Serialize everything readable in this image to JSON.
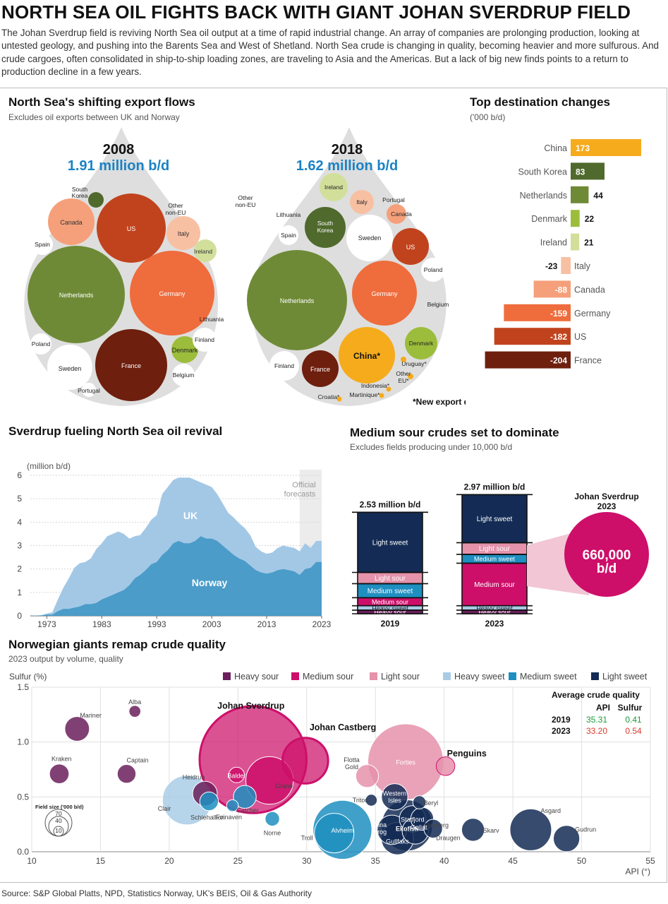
{
  "header": {
    "title": "NORTH SEA OIL FIGHTS BACK WITH GIANT JOHAN SVERDRUP FIELD",
    "intro": "The Johan Sverdrup field is reviving North Sea oil output at a time of rapid industrial change. An array of companies are prolonging production, looking at untested geology, and pushing into the Barents Sea and West of Shetland. North Sea crude is changing in quality, becoming heavier and more sulfurous. And crude cargoes, often consolidated in ship-to-ship loading zones, are traveling to Asia and the Americas. But a lack of big new finds points to a return to production decline in a few years."
  },
  "source": "Source: S&P Global Platts, NPD, Statistics Norway, UK's BEIS, Oil & Gas Authority",
  "colors": {
    "dark_brown": "#6e1f0e",
    "rust": "#c1431d",
    "orange": "#ef6c3c",
    "salmon": "#f5a07a",
    "peach": "#f8c0a3",
    "olive": "#6e8a36",
    "dark_olive": "#4f6a2c",
    "lime": "#9cbd3b",
    "pale_lime": "#d2df9b",
    "gold": "#f6ab1d",
    "navy": "#142c55",
    "mid_blue": "#1f8fc0",
    "light_blue": "#a9cce6",
    "pink": "#e592ab",
    "magenta": "#cd0f6a",
    "purple": "#6b1f5c",
    "area_uk": "#a3c8e6",
    "area_nor": "#4b9cc9"
  },
  "export_flows": {
    "title": "North Sea's shifting export flows",
    "subtitle": "Excludes oil exports between UK and Norway",
    "note": "*New export destination",
    "chart_data": {
      "type": "bubble",
      "panels": [
        {
          "year": "2008",
          "total": "1.91 million b/d",
          "bubbles": [
            {
              "name": "Netherlands",
              "color": "olive"
            },
            {
              "name": "Germany",
              "color": "orange"
            },
            {
              "name": "France",
              "color": "dark_brown"
            },
            {
              "name": "US",
              "color": "rust"
            },
            {
              "name": "Canada",
              "color": "salmon"
            },
            {
              "name": "Italy",
              "color": "peach"
            },
            {
              "name": "Denmark",
              "color": "lime"
            },
            {
              "name": "Ireland",
              "color": "pale_lime"
            },
            {
              "name": "South Korea",
              "color": "dark_olive"
            },
            {
              "name": "Sweden",
              "color": "white"
            },
            {
              "name": "Finland",
              "color": "white"
            },
            {
              "name": "Belgium",
              "color": "white"
            },
            {
              "name": "Poland",
              "color": "white"
            },
            {
              "name": "Spain",
              "color": "white"
            },
            {
              "name": "Portugal",
              "color": "white"
            },
            {
              "name": "Lithuania",
              "color": "white"
            },
            {
              "name": "Other non-EU",
              "color": "white"
            }
          ]
        },
        {
          "year": "2018",
          "total": "1.62 million b/d",
          "bubbles": [
            {
              "name": "Netherlands",
              "color": "olive"
            },
            {
              "name": "Germany",
              "color": "orange"
            },
            {
              "name": "China*",
              "color": "gold"
            },
            {
              "name": "Sweden",
              "color": "white"
            },
            {
              "name": "US",
              "color": "rust"
            },
            {
              "name": "South Korea",
              "color": "dark_olive"
            },
            {
              "name": "Denmark",
              "color": "lime"
            },
            {
              "name": "France",
              "color": "dark_brown"
            },
            {
              "name": "Ireland",
              "color": "pale_lime"
            },
            {
              "name": "Italy",
              "color": "peach"
            },
            {
              "name": "Canada",
              "color": "salmon"
            },
            {
              "name": "Finland",
              "color": "white"
            },
            {
              "name": "Poland",
              "color": "white"
            },
            {
              "name": "Belgium",
              "color": "white"
            },
            {
              "name": "Spain",
              "color": "white"
            },
            {
              "name": "Lithuania",
              "color": "white"
            },
            {
              "name": "Portugal",
              "color": "white"
            },
            {
              "name": "Other non-EU",
              "color": "white"
            },
            {
              "name": "Uruguay*",
              "color": "gold"
            },
            {
              "name": "Other EU*",
              "color": "gold"
            },
            {
              "name": "Indonesia*",
              "color": "gold"
            },
            {
              "name": "Martinique*",
              "color": "gold"
            },
            {
              "name": "Croatia*",
              "color": "gold"
            }
          ]
        }
      ]
    }
  },
  "destination_changes": {
    "title": "Top destination changes",
    "unit": "('000 b/d)",
    "chart_data": {
      "type": "bar",
      "orientation": "horizontal",
      "categories": [
        "China",
        "South Korea",
        "Netherlands",
        "Denmark",
        "Ireland",
        "Italy",
        "Canada",
        "Germany",
        "US",
        "France"
      ],
      "values": [
        173,
        83,
        44,
        22,
        21,
        -23,
        -88,
        -159,
        -182,
        -204
      ],
      "labels": [
        "173",
        "83",
        "44",
        "22",
        "21",
        "-23",
        "-88",
        "-159",
        "-182",
        "-204"
      ],
      "colors": [
        "gold",
        "dark_olive",
        "olive",
        "lime",
        "pale_lime",
        "peach",
        "salmon",
        "orange",
        "rust",
        "dark_brown"
      ],
      "xlim": [
        -210,
        180
      ]
    }
  },
  "revival": {
    "title": "Sverdrup fueling North Sea oil revival",
    "unit": "(million b/d)",
    "forecast_label": "Official forecasts",
    "chart_data": {
      "type": "area",
      "stacked": true,
      "x": [
        1970,
        1972,
        1973,
        1974,
        1975,
        1976,
        1977,
        1978,
        1979,
        1980,
        1981,
        1982,
        1983,
        1984,
        1985,
        1986,
        1987,
        1988,
        1989,
        1990,
        1991,
        1992,
        1993,
        1994,
        1995,
        1996,
        1997,
        1998,
        1999,
        2000,
        2001,
        2002,
        2003,
        2004,
        2005,
        2006,
        2007,
        2008,
        2009,
        2010,
        2011,
        2012,
        2013,
        2014,
        2015,
        2016,
        2017,
        2018,
        2019,
        2020,
        2021,
        2022,
        2023
      ],
      "series": [
        {
          "name": "Norway",
          "values": [
            0,
            0.02,
            0.05,
            0.05,
            0.2,
            0.3,
            0.3,
            0.35,
            0.4,
            0.5,
            0.5,
            0.55,
            0.7,
            0.8,
            0.9,
            1.0,
            1.1,
            1.3,
            1.6,
            1.75,
            1.95,
            2.2,
            2.3,
            2.6,
            2.8,
            3.1,
            3.2,
            3.1,
            3.1,
            3.2,
            3.4,
            3.3,
            3.3,
            3.2,
            3.0,
            2.8,
            2.6,
            2.45,
            2.35,
            2.15,
            1.95,
            1.85,
            1.8,
            1.85,
            1.95,
            2.0,
            1.95,
            1.9,
            1.75,
            2.0,
            2.05,
            2.3,
            2.3
          ]
        },
        {
          "name": "UK",
          "values": [
            0,
            0,
            0.05,
            0.1,
            0.5,
            0.9,
            1.3,
            1.7,
            1.85,
            1.8,
            1.95,
            2.3,
            2.4,
            2.6,
            2.6,
            2.6,
            2.4,
            2.0,
            1.8,
            1.7,
            1.8,
            1.9,
            2.0,
            2.6,
            2.7,
            2.7,
            2.7,
            2.8,
            2.8,
            2.6,
            2.3,
            2.3,
            2.2,
            2.0,
            1.8,
            1.6,
            1.6,
            1.5,
            1.4,
            1.3,
            1.0,
            0.9,
            0.85,
            0.85,
            0.95,
            1.0,
            1.0,
            1.0,
            1.0,
            1.1,
            0.85,
            0.9,
            0.9
          ]
        }
      ],
      "xticks": [
        "1973",
        "1983",
        "1993",
        "2003",
        "2013",
        "2023"
      ],
      "yticks": [
        "0",
        "1",
        "2",
        "3",
        "4",
        "5",
        "6"
      ],
      "ylim": [
        0,
        6
      ],
      "xlim": [
        1970,
        2023
      ],
      "forecast_start": 2019
    }
  },
  "medium_sour": {
    "title": "Medium sour crudes set to dominate",
    "subtitle": "Excludes fields producing under 10,000 b/d",
    "sverdrup_title": "Johan Sverdrup 2023",
    "sverdrup_value": "660,000 b/d",
    "chart_data": {
      "type": "bar",
      "stacked": true,
      "categories": [
        "2019",
        "2023"
      ],
      "totals": [
        "2.53 million b/d",
        "2.97 million b/d"
      ],
      "total_values": [
        2.53,
        2.97
      ],
      "segments_bottom_up": [
        "Heavy sour",
        "Heavy sweet",
        "Medium sour",
        "Medium sweet",
        "Light sour",
        "Light sweet"
      ],
      "colors": [
        "purple",
        "light_blue",
        "magenta",
        "mid_blue",
        "pink",
        "navy"
      ],
      "values": [
        [
          0.09,
          0.11,
          0.2,
          0.35,
          0.28,
          1.5
        ],
        [
          0.09,
          0.11,
          1.06,
          0.22,
          0.29,
          1.2
        ]
      ]
    }
  },
  "quality": {
    "title": "Norwegian giants remap crude quality",
    "subtitle": "2023 output by volume, quality",
    "ylabel": "Sulfur (%)",
    "xlabel": "API (°)",
    "legend": [
      "Heavy sour",
      "Medium sour",
      "Light sour",
      "Heavy sweet",
      "Medium sweet",
      "Light sweet"
    ],
    "size_legend_title": "Field size ('000 b/d)",
    "size_legend_values": [
      "70",
      "40",
      "10"
    ],
    "avg": {
      "title": "Average crude quality",
      "cols": [
        "API",
        "Sulfur"
      ],
      "rows": [
        {
          "year": "2019",
          "api": "35.31",
          "sulfur": "0.41",
          "color": "#1e9b3a"
        },
        {
          "year": "2023",
          "api": "33.20",
          "sulfur": "0.54",
          "color": "#d83a2a"
        }
      ]
    },
    "chart_data": {
      "type": "scatter",
      "xlim": [
        10,
        55
      ],
      "ylim": [
        0,
        1.5
      ],
      "xticks": [
        "10",
        "15",
        "20",
        "25",
        "30",
        "35",
        "40",
        "45",
        "50",
        "55"
      ],
      "yticks": [
        "0.0",
        "0.5",
        "1.0",
        "1.5"
      ],
      "points": [
        {
          "name": "Alba",
          "api": 17.5,
          "sulfur": 1.28,
          "size": 8,
          "cat": "Heavy sour"
        },
        {
          "name": "Mariner",
          "api": 13.3,
          "sulfur": 1.12,
          "size": 35,
          "cat": "Heavy sour"
        },
        {
          "name": "Kraken",
          "api": 12.0,
          "sulfur": 0.71,
          "size": 22,
          "cat": "Heavy sour"
        },
        {
          "name": "Captain",
          "api": 16.9,
          "sulfur": 0.71,
          "size": 20,
          "cat": "Heavy sour"
        },
        {
          "name": "Heidrun",
          "api": 22.6,
          "sulfur": 0.53,
          "size": 35,
          "cat": "Heavy sour"
        },
        {
          "name": "Balder",
          "api": 24.9,
          "sulfur": 0.7,
          "size": 14,
          "cat": "Medium sour"
        },
        {
          "name": "Johan Sverdrup",
          "api": 26.1,
          "sulfur": 0.84,
          "size": 660,
          "cat": "Medium sour",
          "bold": true
        },
        {
          "name": "Grane",
          "api": 27.3,
          "sulfur": 0.65,
          "size": 130,
          "cat": "Medium sour"
        },
        {
          "name": "Johan Castberg",
          "api": 29.9,
          "sulfur": 0.83,
          "size": 120,
          "cat": "Medium sour",
          "bold": true
        },
        {
          "name": "Clair",
          "api": 21.3,
          "sulfur": 0.47,
          "size": 140,
          "cat": "Heavy sweet"
        },
        {
          "name": "Schiehallion",
          "api": 22.9,
          "sulfur": 0.46,
          "size": 20,
          "cat": "Medium sweet"
        },
        {
          "name": "Foinaven",
          "api": 24.6,
          "sulfur": 0.42,
          "size": 8,
          "cat": "Medium sweet"
        },
        {
          "name": "Catcher",
          "api": 25.5,
          "sulfur": 0.5,
          "size": 30,
          "cat": "Medium sweet"
        },
        {
          "name": "Norne",
          "api": 27.5,
          "sulfur": 0.3,
          "size": 12,
          "cat": "Medium sweet"
        },
        {
          "name": "Alvheim",
          "api": 32.6,
          "sulfur": 0.2,
          "size": 200,
          "cat": "Medium sweet"
        },
        {
          "name": "Flotta Gold",
          "api": 34.4,
          "sulfur": 0.69,
          "size": 30,
          "cat": "Light sour"
        },
        {
          "name": "Forties",
          "api": 37.2,
          "sulfur": 0.82,
          "size": 330,
          "cat": "Light sour"
        },
        {
          "name": "Penguins",
          "api": 40.1,
          "sulfur": 0.78,
          "size": 20,
          "cat": "Light sour",
          "bold": true
        },
        {
          "name": "Triton",
          "api": 34.7,
          "sulfur": 0.47,
          "size": 8,
          "cat": "Light sweet"
        },
        {
          "name": "Western Isles",
          "api": 36.4,
          "sulfur": 0.5,
          "size": 40,
          "cat": "Light sweet"
        },
        {
          "name": "Beryl",
          "api": 38.2,
          "sulfur": 0.45,
          "size": 10,
          "cat": "Light sweet"
        },
        {
          "name": "Statfjord",
          "api": 37.7,
          "sulfur": 0.3,
          "size": 40,
          "cat": "Light sweet"
        },
        {
          "name": "Oseberg",
          "api": 38.4,
          "sulfur": 0.3,
          "size": 30,
          "cat": "Light sweet"
        },
        {
          "name": "Gina Krog",
          "api": 36.2,
          "sulfur": 0.2,
          "size": 50,
          "cat": "Light sweet"
        },
        {
          "name": "Ekofisk",
          "api": 37.3,
          "sulfur": 0.24,
          "size": 150,
          "cat": "Light sweet"
        },
        {
          "name": "Goliat",
          "api": 37.9,
          "sulfur": 0.19,
          "size": 40,
          "cat": "Light sweet"
        },
        {
          "name": "Gullfaks",
          "api": 36.6,
          "sulfur": 0.12,
          "size": 60,
          "cat": "Light sweet"
        },
        {
          "name": "Draugen",
          "api": 39.2,
          "sulfur": 0.21,
          "size": 20,
          "cat": "Light sweet"
        },
        {
          "name": "Skarv",
          "api": 42.1,
          "sulfur": 0.2,
          "size": 30,
          "cat": "Light sweet"
        },
        {
          "name": "Asgard",
          "api": 46.3,
          "sulfur": 0.2,
          "size": 100,
          "cat": "Light sweet"
        },
        {
          "name": "Gudrun",
          "api": 48.9,
          "sulfur": 0.12,
          "size": 40,
          "cat": "Light sweet"
        },
        {
          "name": "Troll",
          "api": 32.0,
          "sulfur": 0.17,
          "size": 90,
          "cat": "Medium sweet"
        }
      ]
    }
  }
}
